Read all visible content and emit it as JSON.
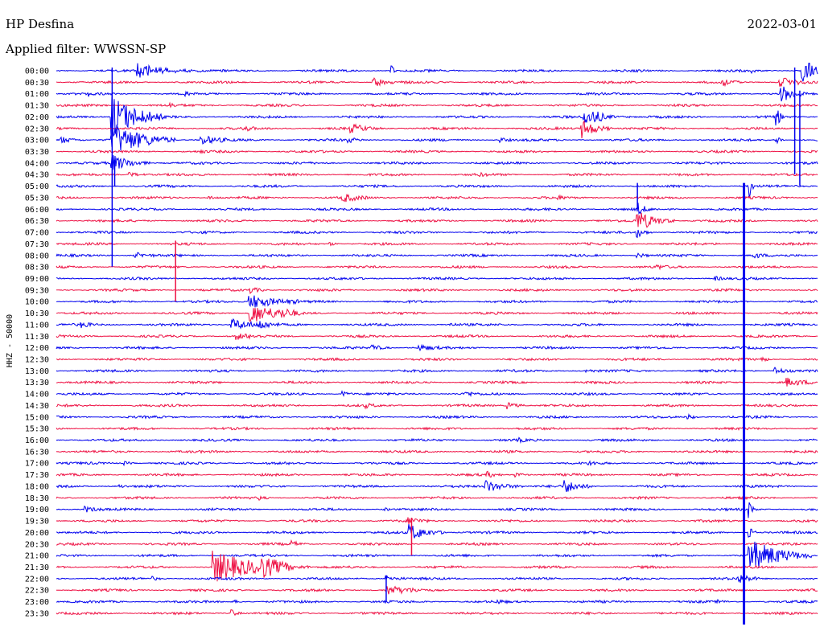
{
  "header": {
    "station": "HP Desfina",
    "date": "2022-03-01",
    "filter": "Applied filter: WWSSN-SP",
    "channel": "HHZ - 50000"
  },
  "colors": {
    "trace_a": "#0000ee",
    "trace_b": "#ee1144",
    "text": "#000000",
    "background": "#ffffff"
  },
  "chart_data": {
    "type": "line",
    "title": "HP Desfina",
    "subtitle": "Applied filter: WWSSN-SP",
    "ylabel": "HHZ - 50000",
    "xlabel": "",
    "grid": false,
    "legend": "none",
    "x_range": [
      0,
      30
    ],
    "row_labels": [
      "00:00",
      "00:30",
      "01:00",
      "01:30",
      "02:00",
      "02:30",
      "03:00",
      "03:30",
      "04:00",
      "04:30",
      "05:00",
      "05:30",
      "06:00",
      "06:30",
      "07:00",
      "07:30",
      "08:00",
      "08:30",
      "09:00",
      "09:30",
      "10:00",
      "10:30",
      "11:00",
      "11:30",
      "12:00",
      "12:30",
      "13:00",
      "13:30",
      "14:00",
      "14:30",
      "15:00",
      "15:30",
      "16:00",
      "16:30",
      "17:00",
      "17:30",
      "18:00",
      "18:30",
      "19:00",
      "19:30",
      "20:00",
      "20:30",
      "21:00",
      "21:30",
      "22:00",
      "22:30",
      "23:00",
      "23:30"
    ],
    "series": [
      {
        "row": 0,
        "events": [
          [
            3.2,
            8,
            2.5
          ],
          [
            13.2,
            8,
            0.2
          ],
          [
            27.4,
            2,
            0.2
          ],
          [
            29.4,
            16,
            1.0
          ]
        ]
      },
      {
        "row": 1,
        "events": [
          [
            12.5,
            6,
            0.8
          ],
          [
            26.1,
            6,
            0.8
          ],
          [
            28.5,
            8,
            1.0
          ]
        ]
      },
      {
        "row": 2,
        "events": [
          [
            1.3,
            2,
            0.2
          ],
          [
            5.1,
            2,
            0.2
          ],
          [
            28.5,
            12,
            1.0
          ]
        ]
      },
      {
        "row": 3,
        "events": [
          [
            4.5,
            2,
            0.3
          ]
        ]
      },
      {
        "row": 4,
        "events": [
          [
            2.2,
            28,
            2.0
          ],
          [
            20.8,
            12,
            0.8
          ],
          [
            21.2,
            4,
            1.5
          ],
          [
            28.4,
            10,
            0.3
          ]
        ]
      },
      {
        "row": 5,
        "events": [
          [
            11.6,
            5,
            1.2
          ],
          [
            20.7,
            12,
            1.2
          ],
          [
            7.4,
            3,
            0.5
          ]
        ]
      },
      {
        "row": 6,
        "events": [
          [
            0.2,
            4,
            1.0
          ],
          [
            2.2,
            20,
            2.5
          ],
          [
            5.7,
            6,
            1.2
          ],
          [
            11.5,
            3,
            0.6
          ],
          [
            17.5,
            3,
            0.5
          ],
          [
            28.4,
            6,
            0.3
          ]
        ]
      },
      {
        "row": 7,
        "events": [
          [
            5.7,
            2,
            0.2
          ]
        ]
      },
      {
        "row": 8,
        "events": [
          [
            2.2,
            10,
            1.5
          ]
        ]
      },
      {
        "row": 9,
        "events": [
          [
            2.9,
            3,
            0.8
          ],
          [
            16.6,
            2,
            0.5
          ]
        ]
      },
      {
        "row": 10,
        "events": [
          [
            27.3,
            18,
            0.2
          ]
        ]
      },
      {
        "row": 11,
        "events": [
          [
            11.3,
            5,
            1.0
          ],
          [
            6.0,
            2,
            0.6
          ],
          [
            19.7,
            2,
            0.6
          ]
        ]
      },
      {
        "row": 12,
        "events": [
          [
            22.9,
            8,
            0.5
          ]
        ]
      },
      {
        "row": 13,
        "events": [
          [
            22.9,
            12,
            1.5
          ]
        ]
      },
      {
        "row": 14,
        "events": [
          [
            22.9,
            6,
            0.6
          ]
        ]
      },
      {
        "row": 15,
        "events": [
          [
            10.8,
            2,
            0.5
          ]
        ]
      },
      {
        "row": 16,
        "events": [
          [
            3.1,
            4,
            0.8
          ],
          [
            22.9,
            4,
            0.5
          ],
          [
            27.5,
            4,
            0.5
          ]
        ]
      },
      {
        "row": 17,
        "events": [
          [
            23.7,
            2,
            0.5
          ]
        ]
      },
      {
        "row": 18,
        "events": [
          [
            25.9,
            3,
            0.6
          ]
        ]
      },
      {
        "row": 19,
        "events": [
          [
            7.6,
            4,
            0.8
          ]
        ]
      },
      {
        "row": 20,
        "events": [
          [
            7.6,
            10,
            2.0
          ]
        ]
      },
      {
        "row": 21,
        "events": [
          [
            7.6,
            14,
            2.0
          ],
          [
            8.9,
            3,
            0.5
          ]
        ]
      },
      {
        "row": 22,
        "events": [
          [
            1.0,
            3,
            0.6
          ],
          [
            6.9,
            8,
            1.5
          ],
          [
            8.0,
            4,
            0.8
          ],
          [
            15.5,
            2,
            0.5
          ]
        ]
      },
      {
        "row": 23,
        "events": [
          [
            7.1,
            4,
            1.0
          ]
        ]
      },
      {
        "row": 24,
        "events": [
          [
            12.4,
            4,
            0.8
          ],
          [
            14.3,
            4,
            0.8
          ]
        ]
      },
      {
        "row": 25,
        "events": [
          [
            27.8,
            3,
            0.4
          ]
        ]
      },
      {
        "row": 26,
        "events": [
          [
            28.3,
            5,
            0.8
          ],
          [
            20.9,
            2,
            0.5
          ]
        ]
      },
      {
        "row": 27,
        "events": [
          [
            28.8,
            5,
            1.0
          ]
        ]
      },
      {
        "row": 28,
        "events": [
          [
            11.3,
            3,
            0.5
          ],
          [
            16.1,
            3,
            0.6
          ]
        ]
      },
      {
        "row": 29,
        "events": [
          [
            17.8,
            4,
            0.8
          ],
          [
            12.2,
            2,
            0.5
          ]
        ]
      },
      {
        "row": 30,
        "events": [
          [
            24.9,
            3,
            0.5
          ]
        ]
      },
      {
        "row": 32,
        "events": [
          [
            18.2,
            2,
            0.5
          ]
        ]
      },
      {
        "row": 34,
        "events": [
          [
            2.7,
            2,
            0.5
          ],
          [
            21.0,
            2,
            0.5
          ]
        ]
      },
      {
        "row": 35,
        "events": [
          [
            17.0,
            3,
            0.6
          ],
          [
            18.1,
            3,
            0.6
          ]
        ]
      },
      {
        "row": 36,
        "events": [
          [
            16.9,
            8,
            1.5
          ],
          [
            20.0,
            8,
            1.2
          ],
          [
            2.5,
            2,
            0.4
          ]
        ]
      },
      {
        "row": 37,
        "events": [
          [
            8.0,
            2,
            0.4
          ]
        ]
      },
      {
        "row": 38,
        "events": [
          [
            1.1,
            4,
            0.8
          ],
          [
            12.9,
            2,
            0.5
          ],
          [
            27.3,
            10,
            0.3
          ]
        ]
      },
      {
        "row": 39,
        "events": [
          [
            13.9,
            4,
            0.8
          ]
        ]
      },
      {
        "row": 40,
        "events": [
          [
            13.9,
            10,
            1.5
          ],
          [
            27.3,
            10,
            0.3
          ]
        ]
      },
      {
        "row": 41,
        "events": [
          [
            9.3,
            3,
            0.6
          ]
        ]
      },
      {
        "row": 42,
        "events": [
          [
            27.3,
            20,
            2.5
          ]
        ]
      },
      {
        "row": 43,
        "events": [
          [
            6.2,
            20,
            3.0
          ],
          [
            8.0,
            10,
            2.0
          ]
        ]
      },
      {
        "row": 44,
        "events": [
          [
            3.8,
            2,
            0.5
          ],
          [
            13.0,
            4,
            0.8
          ],
          [
            26.9,
            6,
            0.8
          ]
        ]
      },
      {
        "row": 45,
        "events": [
          [
            13.0,
            6,
            1.5
          ]
        ]
      },
      {
        "row": 46,
        "events": [
          [
            7.0,
            2,
            0.5
          ],
          [
            17.4,
            2,
            0.4
          ],
          [
            26.1,
            2,
            0.4
          ]
        ]
      },
      {
        "row": 47,
        "events": [
          [
            6.9,
            6,
            0.4
          ]
        ]
      }
    ],
    "spikes": [
      [
        2.2,
        0,
        16
      ],
      [
        29.1,
        0,
        8
      ],
      [
        29.3,
        2,
        9
      ],
      [
        27.1,
        10,
        47
      ],
      [
        4.7,
        15,
        19
      ],
      [
        22.9,
        10,
        11
      ],
      [
        2.3,
        8,
        9
      ],
      [
        14.0,
        39,
        41
      ],
      [
        13.0,
        44,
        45
      ]
    ]
  }
}
